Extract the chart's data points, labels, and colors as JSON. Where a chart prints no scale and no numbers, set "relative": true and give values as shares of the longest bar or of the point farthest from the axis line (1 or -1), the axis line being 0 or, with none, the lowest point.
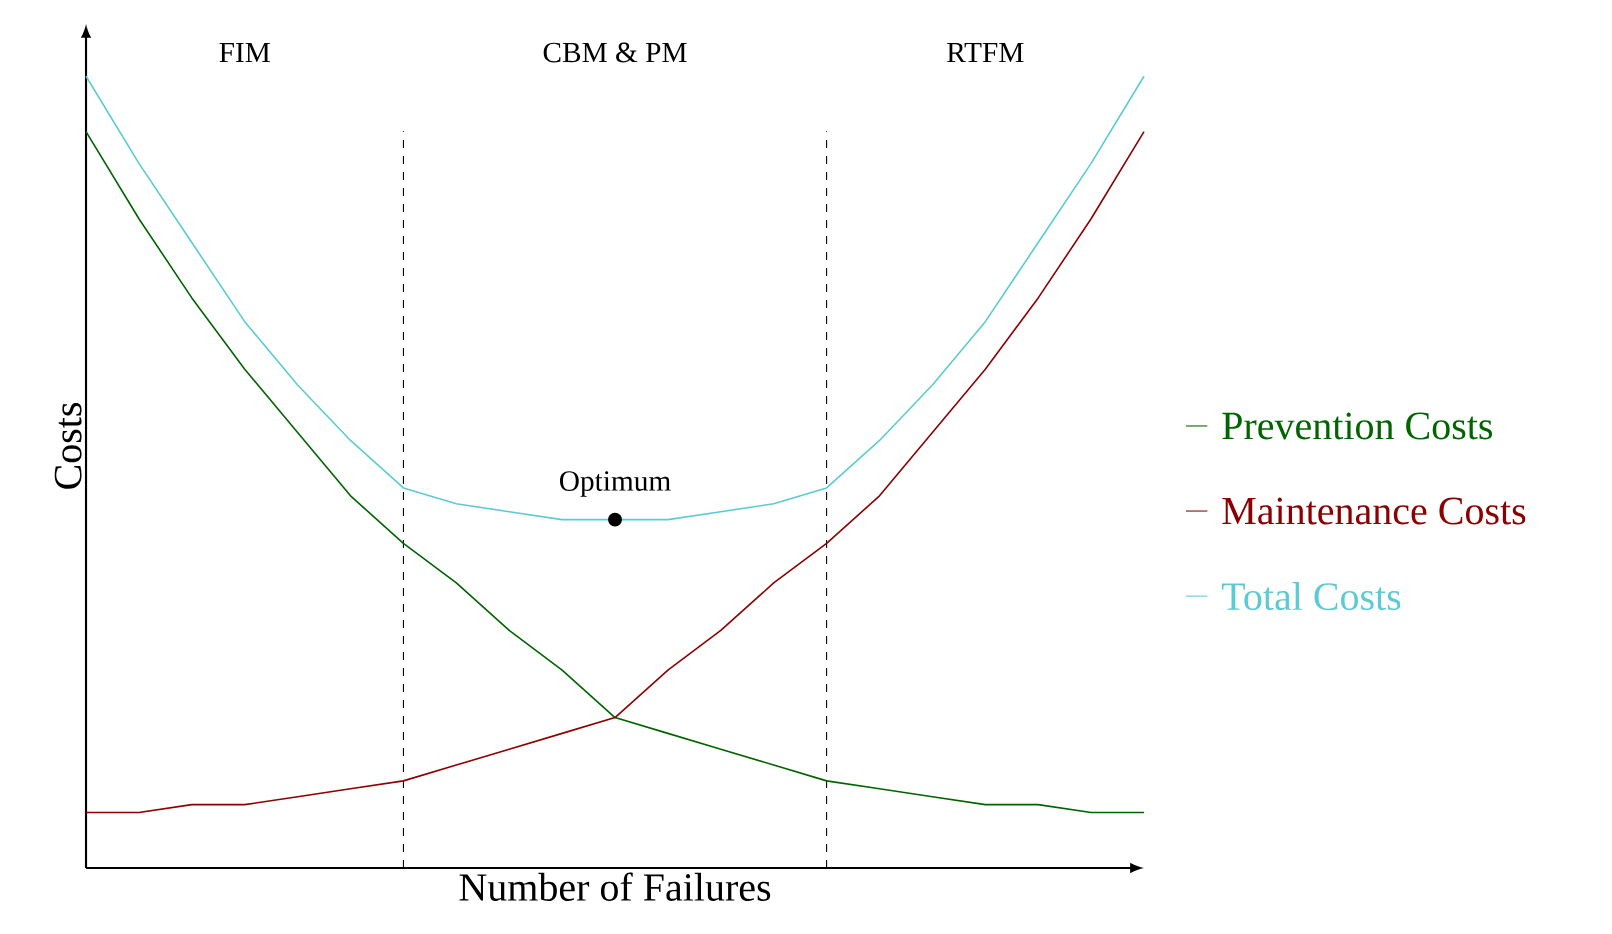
{
  "chart_data": {
    "type": "line",
    "relative": true,
    "xlabel": "Number of Failures",
    "ylabel": "Costs",
    "legend": "right",
    "marker": "none",
    "categories": [
      null,
      null,
      null,
      null,
      null,
      null,
      null,
      null,
      null,
      null,
      null,
      null,
      null,
      null,
      null,
      null,
      null,
      null,
      null,
      null,
      null
    ],
    "series": [
      {
        "name": "Prevention Costs",
        "color": "#006400",
        "values": [
          0.93,
          0.82,
          0.72,
          0.63,
          0.55,
          0.47,
          0.41,
          0.36,
          0.3,
          0.25,
          0.19,
          0.17,
          0.15,
          0.13,
          0.11,
          0.1,
          0.09,
          0.08,
          0.08,
          0.07,
          0.07
        ]
      },
      {
        "name": "Maintenance Costs",
        "color": "#8b0000",
        "values": [
          0.07,
          0.07,
          0.08,
          0.08,
          0.09,
          0.1,
          0.11,
          0.13,
          0.15,
          0.17,
          0.19,
          0.25,
          0.3,
          0.36,
          0.41,
          0.47,
          0.55,
          0.63,
          0.72,
          0.82,
          0.93
        ]
      },
      {
        "name": "Total Costs",
        "color": "#5bcbd3",
        "values": [
          1.0,
          0.89,
          0.79,
          0.69,
          0.61,
          0.54,
          0.48,
          0.46,
          0.45,
          0.44,
          0.44,
          0.44,
          0.45,
          0.46,
          0.48,
          0.54,
          0.61,
          0.69,
          0.79,
          0.89,
          1.0
        ]
      }
    ],
    "annotations": [
      "FIM",
      "CBM & PM",
      "RTFM",
      {
        "text": "Optimum",
        "y": 0.44
      }
    ]
  }
}
